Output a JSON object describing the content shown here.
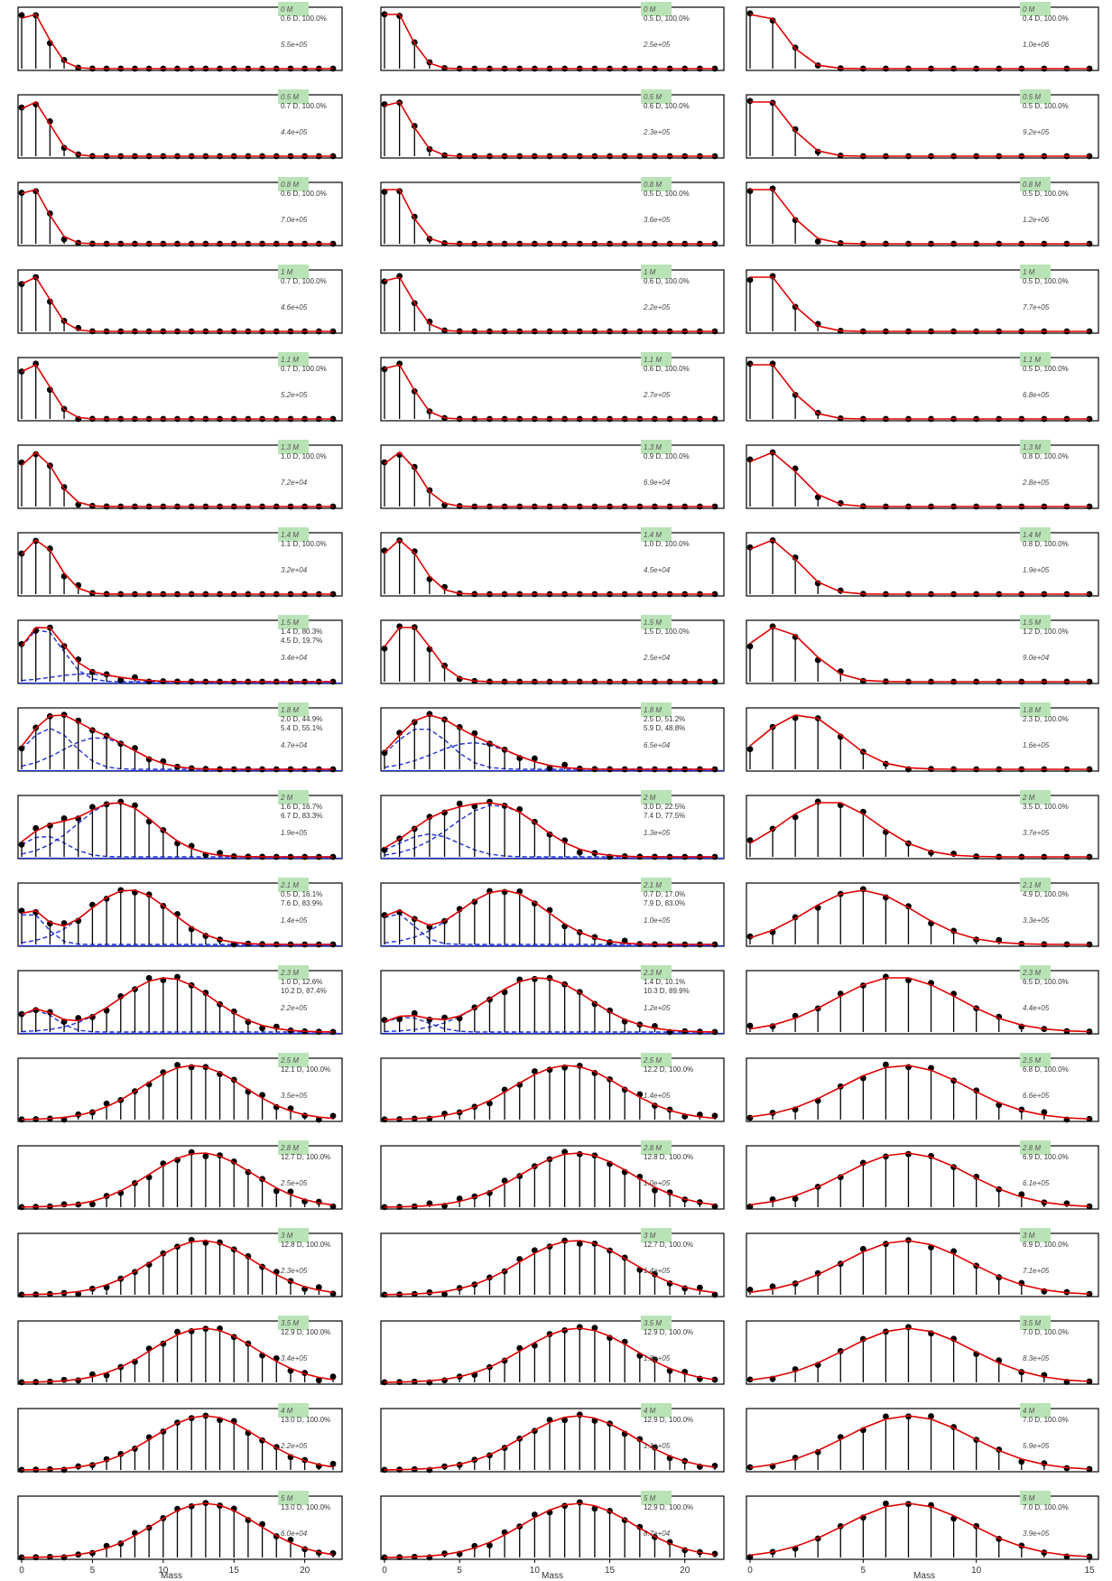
{
  "figure": {
    "xlabel": "Mass",
    "colors": {
      "stem": "#000000",
      "fit": "#e00000",
      "component": "#1f2fd6",
      "baseline": "#1f2fd6",
      "badge": "#b9e3b6",
      "frame": "#000000"
    },
    "columns": [
      {
        "xlim": [
          0,
          22
        ],
        "xticks": [
          "0",
          "5",
          "10",
          "15",
          "20"
        ],
        "xtick_values": [
          0,
          5,
          10,
          15,
          20
        ]
      },
      {
        "xlim": [
          0,
          22
        ],
        "xticks": [
          "0",
          "5",
          "10",
          "15",
          "20"
        ],
        "xtick_values": [
          0,
          5,
          10,
          15,
          20
        ]
      },
      {
        "xlim": [
          0,
          15
        ],
        "xticks": [
          "0",
          "5",
          "10",
          "15"
        ],
        "xtick_values": [
          0,
          5,
          10,
          15
        ]
      }
    ]
  },
  "chart_data": [
    {
      "type": "scatter",
      "col": 0,
      "row": 0,
      "minutes": "0 M",
      "lines": [
        "0.6 D, 100.0%"
      ],
      "intensity": "5.5e+05",
      "comps": [
        [
          0.6,
          1
        ]
      ]
    },
    {
      "type": "scatter",
      "col": 1,
      "row": 0,
      "minutes": "0 M",
      "lines": [
        "0.5 D, 100.0%"
      ],
      "intensity": "2.5e+05",
      "comps": [
        [
          0.5,
          1
        ]
      ]
    },
    {
      "type": "scatter",
      "col": 2,
      "row": 0,
      "minutes": "0 M",
      "lines": [
        "0.4 D, 100.0%"
      ],
      "intensity": "1.0e+06",
      "comps": [
        [
          0.4,
          1
        ]
      ]
    },
    {
      "type": "scatter",
      "col": 0,
      "row": 1,
      "minutes": "0.5 M",
      "lines": [
        "0.7 D, 100.0%"
      ],
      "intensity": "4.4e+05",
      "comps": [
        [
          0.7,
          1
        ]
      ]
    },
    {
      "type": "scatter",
      "col": 1,
      "row": 1,
      "minutes": "0.5 M",
      "lines": [
        "0.6 D, 100.0%"
      ],
      "intensity": "2.3e+05",
      "comps": [
        [
          0.6,
          1
        ]
      ]
    },
    {
      "type": "scatter",
      "col": 2,
      "row": 1,
      "minutes": "0.5 M",
      "lines": [
        "0.5 D, 100.0%"
      ],
      "intensity": "9.2e+05",
      "comps": [
        [
          0.5,
          1
        ]
      ]
    },
    {
      "type": "scatter",
      "col": 0,
      "row": 2,
      "minutes": "0.8 M",
      "lines": [
        "0.6 D, 100.0%"
      ],
      "intensity": "7.0e+05",
      "comps": [
        [
          0.6,
          1
        ]
      ]
    },
    {
      "type": "scatter",
      "col": 1,
      "row": 2,
      "minutes": "0.8 M",
      "lines": [
        "0.5 D, 100.0%"
      ],
      "intensity": "3.6e+05",
      "comps": [
        [
          0.5,
          1
        ]
      ]
    },
    {
      "type": "scatter",
      "col": 2,
      "row": 2,
      "minutes": "0.8 M",
      "lines": [
        "0.5 D, 100.0%"
      ],
      "intensity": "1.2e+06",
      "comps": [
        [
          0.5,
          1
        ]
      ]
    },
    {
      "type": "scatter",
      "col": 0,
      "row": 3,
      "minutes": "1 M",
      "lines": [
        "0.7 D, 100.0%"
      ],
      "intensity": "4.6e+05",
      "comps": [
        [
          0.7,
          1
        ]
      ]
    },
    {
      "type": "scatter",
      "col": 1,
      "row": 3,
      "minutes": "1 M",
      "lines": [
        "0.6 D, 100.0%"
      ],
      "intensity": "2.2e+05",
      "comps": [
        [
          0.6,
          1
        ]
      ]
    },
    {
      "type": "scatter",
      "col": 2,
      "row": 3,
      "minutes": "1 M",
      "lines": [
        "0.5 D, 100.0%"
      ],
      "intensity": "7.7e+05",
      "comps": [
        [
          0.5,
          1
        ]
      ]
    },
    {
      "type": "scatter",
      "col": 0,
      "row": 4,
      "minutes": "1.1 M",
      "lines": [
        "0.7 D, 100.0%"
      ],
      "intensity": "5.2e+05",
      "comps": [
        [
          0.7,
          1
        ]
      ]
    },
    {
      "type": "scatter",
      "col": 1,
      "row": 4,
      "minutes": "1.1 M",
      "lines": [
        "0.6 D, 100.0%"
      ],
      "intensity": "2.7e+05",
      "comps": [
        [
          0.6,
          1
        ]
      ]
    },
    {
      "type": "scatter",
      "col": 2,
      "row": 4,
      "minutes": "1.1 M",
      "lines": [
        "0.5 D, 100.0%"
      ],
      "intensity": "6.8e+05",
      "comps": [
        [
          0.5,
          1
        ]
      ]
    },
    {
      "type": "scatter",
      "col": 0,
      "row": 5,
      "minutes": "1.3 M",
      "lines": [
        "1.0 D, 100.0%"
      ],
      "intensity": "7.2e+04",
      "comps": [
        [
          1.0,
          1
        ]
      ]
    },
    {
      "type": "scatter",
      "col": 1,
      "row": 5,
      "minutes": "1.3 M",
      "lines": [
        "0.9 D, 100.0%"
      ],
      "intensity": "6.9e+04",
      "comps": [
        [
          0.9,
          1
        ]
      ]
    },
    {
      "type": "scatter",
      "col": 2,
      "row": 5,
      "minutes": "1.3 M",
      "lines": [
        "0.8 D, 100.0%"
      ],
      "intensity": "2.8e+05",
      "comps": [
        [
          0.8,
          1
        ]
      ]
    },
    {
      "type": "scatter",
      "col": 0,
      "row": 6,
      "minutes": "1.4 M",
      "lines": [
        "1.1 D, 100.0%"
      ],
      "intensity": "3.2e+04",
      "comps": [
        [
          1.1,
          1
        ]
      ]
    },
    {
      "type": "scatter",
      "col": 1,
      "row": 6,
      "minutes": "1.4 M",
      "lines": [
        "1.0 D, 100.0%"
      ],
      "intensity": "4.5e+04",
      "comps": [
        [
          1.0,
          1
        ]
      ]
    },
    {
      "type": "scatter",
      "col": 2,
      "row": 6,
      "minutes": "1.4 M",
      "lines": [
        "0.8 D, 100.0%"
      ],
      "intensity": "1.9e+05",
      "comps": [
        [
          0.8,
          1
        ]
      ]
    },
    {
      "type": "scatter",
      "col": 0,
      "row": 7,
      "minutes": "1.5 M",
      "lines": [
        "1.4 D, 80.3%",
        "4.5 D, 19.7%"
      ],
      "intensity": "3.4e+04",
      "comps": [
        [
          1.4,
          0.803
        ],
        [
          4.5,
          0.197
        ]
      ]
    },
    {
      "type": "scatter",
      "col": 1,
      "row": 7,
      "minutes": "1.5 M",
      "lines": [
        "1.5 D, 100.0%"
      ],
      "intensity": "2.5e+04",
      "comps": [
        [
          1.5,
          1
        ]
      ]
    },
    {
      "type": "scatter",
      "col": 2,
      "row": 7,
      "minutes": "1.5 M",
      "lines": [
        "1.2 D, 100.0%"
      ],
      "intensity": "9.0e+04",
      "comps": [
        [
          1.2,
          1
        ]
      ]
    },
    {
      "type": "scatter",
      "col": 0,
      "row": 8,
      "minutes": "1.8 M",
      "lines": [
        "2.0 D, 44.9%",
        "5.4 D, 55.1%"
      ],
      "intensity": "4.7e+04",
      "comps": [
        [
          2.0,
          0.449
        ],
        [
          5.4,
          0.551
        ]
      ]
    },
    {
      "type": "scatter",
      "col": 1,
      "row": 8,
      "minutes": "1.8 M",
      "lines": [
        "2.5 D, 51.2%",
        "5.9 D, 48.8%"
      ],
      "intensity": "6.5e+04",
      "comps": [
        [
          2.5,
          0.512
        ],
        [
          5.9,
          0.488
        ]
      ]
    },
    {
      "type": "scatter",
      "col": 2,
      "row": 8,
      "minutes": "1.8 M",
      "lines": [
        "2.3 D, 100.0%"
      ],
      "intensity": "1.6e+05",
      "comps": [
        [
          2.3,
          1
        ]
      ]
    },
    {
      "type": "scatter",
      "col": 0,
      "row": 9,
      "minutes": "2 M",
      "lines": [
        "1.6 D, 16.7%",
        "6.7 D, 83.3%"
      ],
      "intensity": "1.9e+05",
      "comps": [
        [
          1.6,
          0.167
        ],
        [
          6.7,
          0.833
        ]
      ]
    },
    {
      "type": "scatter",
      "col": 1,
      "row": 9,
      "minutes": "2 M",
      "lines": [
        "3.0 D, 22.5%",
        "7.4 D, 77.5%"
      ],
      "intensity": "1.3e+05",
      "comps": [
        [
          3.0,
          0.225
        ],
        [
          7.4,
          0.775
        ]
      ]
    },
    {
      "type": "scatter",
      "col": 2,
      "row": 9,
      "minutes": "2 M",
      "lines": [
        "3.5 D, 100.0%"
      ],
      "intensity": "3.7e+05",
      "comps": [
        [
          3.5,
          1
        ]
      ]
    },
    {
      "type": "scatter",
      "col": 0,
      "row": 10,
      "minutes": "2.1 M",
      "lines": [
        "0.5 D, 16.1%",
        "7.6 D, 83.9%"
      ],
      "intensity": "1.4e+05",
      "comps": [
        [
          0.5,
          0.161
        ],
        [
          7.6,
          0.839
        ]
      ]
    },
    {
      "type": "scatter",
      "col": 1,
      "row": 10,
      "minutes": "2.1 M",
      "lines": [
        "0.7 D, 17.0%",
        "7.9 D, 83.0%"
      ],
      "intensity": "1.0e+05",
      "comps": [
        [
          0.7,
          0.17
        ],
        [
          7.9,
          0.83
        ]
      ]
    },
    {
      "type": "scatter",
      "col": 2,
      "row": 10,
      "minutes": "2.1 M",
      "lines": [
        "4.9 D, 100.0%"
      ],
      "intensity": "3.3e+05",
      "comps": [
        [
          4.9,
          1
        ]
      ]
    },
    {
      "type": "scatter",
      "col": 0,
      "row": 11,
      "minutes": "2.3 M",
      "lines": [
        "1.0 D, 12.6%",
        "10.2 D, 87.4%"
      ],
      "intensity": "2.2e+05",
      "comps": [
        [
          1.0,
          0.126
        ],
        [
          10.2,
          0.874
        ]
      ]
    },
    {
      "type": "scatter",
      "col": 1,
      "row": 11,
      "minutes": "2.3 M",
      "lines": [
        "1.4 D, 10.1%",
        "10.3 D, 89.9%"
      ],
      "intensity": "1.2e+05",
      "comps": [
        [
          1.4,
          0.101
        ],
        [
          10.3,
          0.899
        ]
      ]
    },
    {
      "type": "scatter",
      "col": 2,
      "row": 11,
      "minutes": "2.3 M",
      "lines": [
        "6.5 D, 100.0%"
      ],
      "intensity": "4.4e+05",
      "comps": [
        [
          6.5,
          1
        ]
      ]
    },
    {
      "type": "scatter",
      "col": 0,
      "row": 12,
      "minutes": "2.5 M",
      "lines": [
        "12.1 D, 100.0%"
      ],
      "intensity": "3.5e+05",
      "comps": [
        [
          12.1,
          1
        ]
      ]
    },
    {
      "type": "scatter",
      "col": 1,
      "row": 12,
      "minutes": "2.5 M",
      "lines": [
        "12.2 D, 100.0%"
      ],
      "intensity": "1.4e+05",
      "comps": [
        [
          12.2,
          1
        ]
      ]
    },
    {
      "type": "scatter",
      "col": 2,
      "row": 12,
      "minutes": "2.5 M",
      "lines": [
        "6.8 D, 100.0%"
      ],
      "intensity": "6.6e+05",
      "comps": [
        [
          6.8,
          1
        ]
      ]
    },
    {
      "type": "scatter",
      "col": 0,
      "row": 13,
      "minutes": "2.8 M",
      "lines": [
        "12.7 D, 100.0%"
      ],
      "intensity": "2.5e+05",
      "comps": [
        [
          12.7,
          1
        ]
      ]
    },
    {
      "type": "scatter",
      "col": 1,
      "row": 13,
      "minutes": "2.8 M",
      "lines": [
        "12.8 D, 100.0%"
      ],
      "intensity": "1.0e+05",
      "comps": [
        [
          12.8,
          1
        ]
      ]
    },
    {
      "type": "scatter",
      "col": 2,
      "row": 13,
      "minutes": "2.8 M",
      "lines": [
        "6.9 D, 100.0%"
      ],
      "intensity": "6.1e+05",
      "comps": [
        [
          6.9,
          1
        ]
      ]
    },
    {
      "type": "scatter",
      "col": 0,
      "row": 14,
      "minutes": "3 M",
      "lines": [
        "12.8 D, 100.0%"
      ],
      "intensity": "2.3e+05",
      "comps": [
        [
          12.8,
          1
        ]
      ]
    },
    {
      "type": "scatter",
      "col": 1,
      "row": 14,
      "minutes": "3 M",
      "lines": [
        "12.7 D, 100.0%"
      ],
      "intensity": "1.4e+05",
      "comps": [
        [
          12.7,
          1
        ]
      ]
    },
    {
      "type": "scatter",
      "col": 2,
      "row": 14,
      "minutes": "3 M",
      "lines": [
        "6.9 D, 100.0%"
      ],
      "intensity": "7.1e+05",
      "comps": [
        [
          6.9,
          1
        ]
      ]
    },
    {
      "type": "scatter",
      "col": 0,
      "row": 15,
      "minutes": "3.5 M",
      "lines": [
        "12.9 D, 100.0%"
      ],
      "intensity": "3.4e+05",
      "comps": [
        [
          12.9,
          1
        ]
      ]
    },
    {
      "type": "scatter",
      "col": 1,
      "row": 15,
      "minutes": "3.5 M",
      "lines": [
        "12.9 D, 100.0%"
      ],
      "intensity": "1.8e+05",
      "comps": [
        [
          12.9,
          1
        ]
      ]
    },
    {
      "type": "scatter",
      "col": 2,
      "row": 15,
      "minutes": "3.5 M",
      "lines": [
        "7.0 D, 100.0%"
      ],
      "intensity": "8.3e+05",
      "comps": [
        [
          7.0,
          1
        ]
      ]
    },
    {
      "type": "scatter",
      "col": 0,
      "row": 16,
      "minutes": "4 M",
      "lines": [
        "13.0 D, 100.0%"
      ],
      "intensity": "2.2e+05",
      "comps": [
        [
          13.0,
          1
        ]
      ]
    },
    {
      "type": "scatter",
      "col": 1,
      "row": 16,
      "minutes": "4 M",
      "lines": [
        "12.9 D, 100.0%"
      ],
      "intensity": "1.1e+05",
      "comps": [
        [
          12.9,
          1
        ]
      ]
    },
    {
      "type": "scatter",
      "col": 2,
      "row": 16,
      "minutes": "4 M",
      "lines": [
        "7.0 D, 100.0%"
      ],
      "intensity": "5.9e+05",
      "comps": [
        [
          7.0,
          1
        ]
      ]
    },
    {
      "type": "scatter",
      "col": 0,
      "row": 17,
      "minutes": "5 M",
      "lines": [
        "13.0 D, 100.0%"
      ],
      "intensity": "6.0e+04",
      "comps": [
        [
          13.0,
          1
        ]
      ]
    },
    {
      "type": "scatter",
      "col": 1,
      "row": 17,
      "minutes": "5 M",
      "lines": [
        "12.9 D, 100.0%"
      ],
      "intensity": "8.7e+04",
      "comps": [
        [
          12.9,
          1
        ]
      ]
    },
    {
      "type": "scatter",
      "col": 2,
      "row": 17,
      "minutes": "5 M",
      "lines": [
        "7.0 D, 100.0%"
      ],
      "intensity": "3.9e+05",
      "comps": [
        [
          7.0,
          1
        ]
      ]
    }
  ]
}
